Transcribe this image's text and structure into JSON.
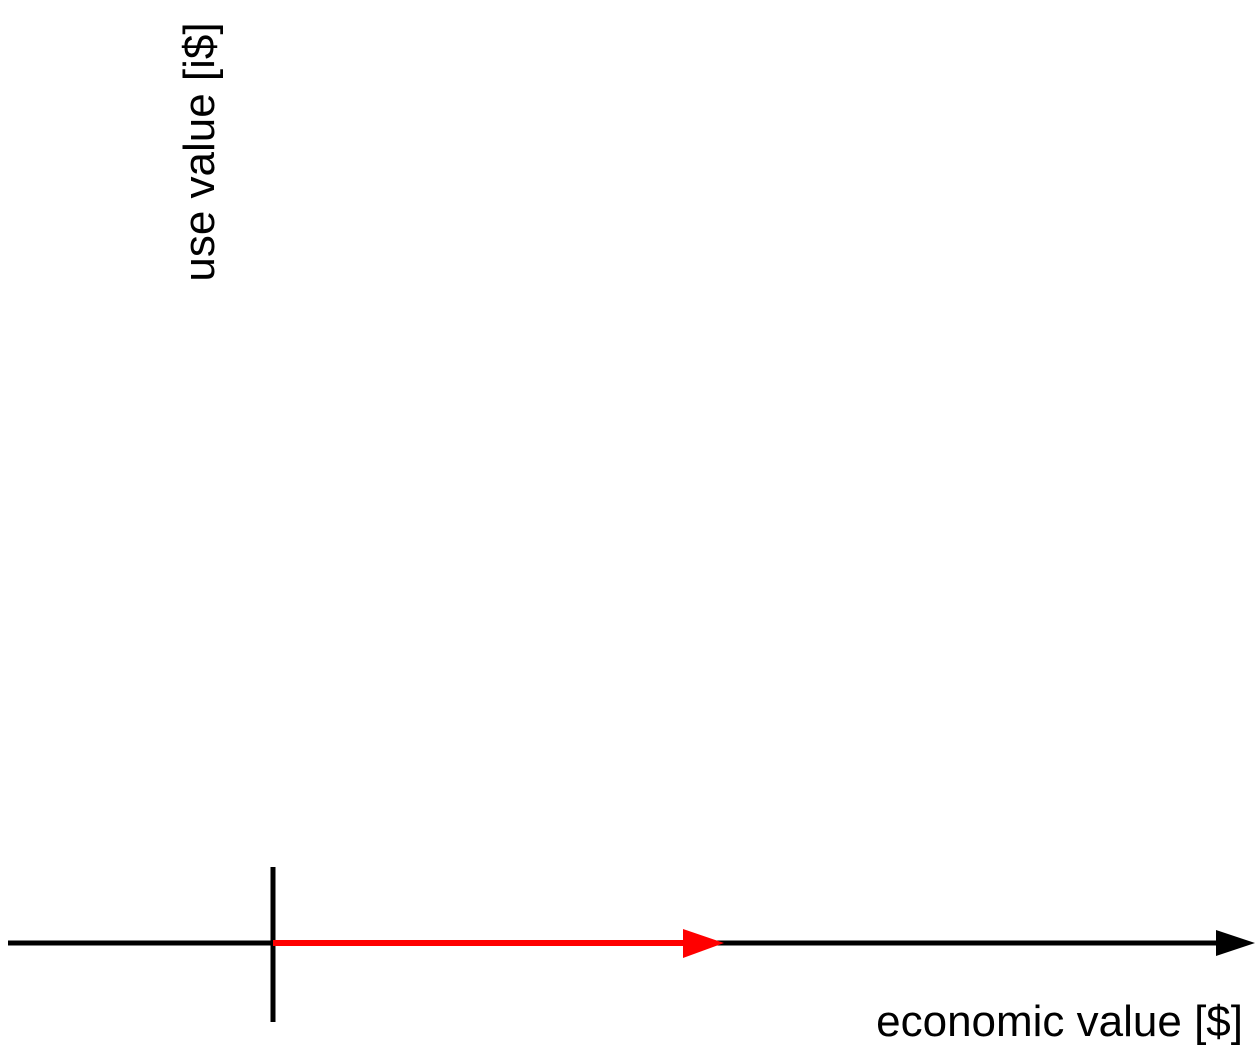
{
  "diagram": {
    "y_axis_label": "use value [i$]",
    "x_axis_label": "economic value [$]",
    "colors": {
      "axis": "#000000",
      "highlight_arrow": "#ff0000",
      "background": "#ffffff"
    }
  }
}
